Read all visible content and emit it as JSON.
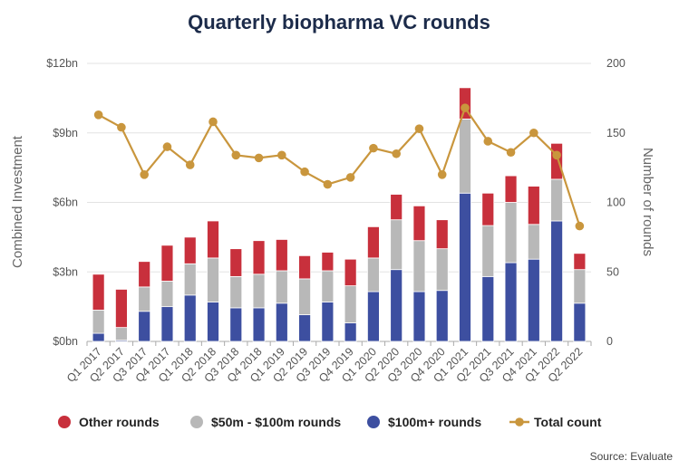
{
  "chart_data": {
    "type": "bar",
    "title": "Quarterly biopharma VC rounds",
    "ylabel": "Combined Investment",
    "y2label": "Number of rounds",
    "ylim": [
      0,
      12
    ],
    "y2lim": [
      0,
      200
    ],
    "y_ticks": [
      "$0bn",
      "$3bn",
      "$6bn",
      "$9bn",
      "$12bn"
    ],
    "y2_ticks": [
      "0",
      "50",
      "100",
      "150",
      "200"
    ],
    "grid": true,
    "legend_position": "bottom",
    "categories": [
      "Q1 2017",
      "Q2 2017",
      "Q3 2017",
      "Q4 2017",
      "Q1 2018",
      "Q2 2018",
      "Q3 2018",
      "Q4 2018",
      "Q1 2019",
      "Q2 2019",
      "Q3 2019",
      "Q4 2019",
      "Q1 2020",
      "Q2 2020",
      "Q3 2020",
      "Q4 2020",
      "Q1 2021",
      "Q2 2021",
      "Q3 2021",
      "Q4 2021",
      "Q1 2022",
      "Q2 2022"
    ],
    "series": [
      {
        "name": "$100m+ rounds",
        "type": "bar",
        "axis": "left",
        "color": "#3d4fa0",
        "values": [
          0.35,
          0.05,
          1.3,
          1.5,
          2.0,
          1.7,
          1.45,
          1.45,
          1.65,
          1.15,
          1.7,
          0.8,
          2.15,
          3.1,
          2.15,
          2.2,
          6.4,
          2.8,
          3.4,
          3.55,
          5.2,
          1.65
        ]
      },
      {
        "name": "$50m - $100m rounds",
        "type": "bar",
        "axis": "left",
        "color": "#b8b8b8",
        "values": [
          1.0,
          0.55,
          1.05,
          1.1,
          1.35,
          1.9,
          1.35,
          1.45,
          1.4,
          1.55,
          1.35,
          1.6,
          1.45,
          2.15,
          2.2,
          1.8,
          3.2,
          2.2,
          2.6,
          1.5,
          1.8,
          1.45
        ]
      },
      {
        "name": "Other rounds",
        "type": "bar",
        "axis": "left",
        "color": "#c8303c",
        "values": [
          1.55,
          1.65,
          1.1,
          1.55,
          1.15,
          1.6,
          1.2,
          1.45,
          1.35,
          1.0,
          0.8,
          1.15,
          1.35,
          1.1,
          1.5,
          1.25,
          1.35,
          1.4,
          1.15,
          1.65,
          1.55,
          0.7
        ]
      },
      {
        "name": "Total count",
        "type": "line",
        "axis": "right",
        "color": "#c9963d",
        "values": [
          163,
          154,
          120,
          140,
          127,
          158,
          134,
          132,
          134,
          122,
          113,
          118,
          139,
          135,
          153,
          120,
          168,
          144,
          136,
          150,
          134,
          83
        ]
      }
    ]
  },
  "legend": [
    {
      "label": "Other rounds",
      "color": "#c8303c",
      "marker": "circle"
    },
    {
      "label": "$50m - $100m rounds",
      "color": "#b8b8b8",
      "marker": "circle"
    },
    {
      "label": "$100m+ rounds",
      "color": "#3d4fa0",
      "marker": "circle"
    },
    {
      "label": "Total count",
      "color": "#c9963d",
      "marker": "line"
    }
  ],
  "source": "Source: Evaluate"
}
